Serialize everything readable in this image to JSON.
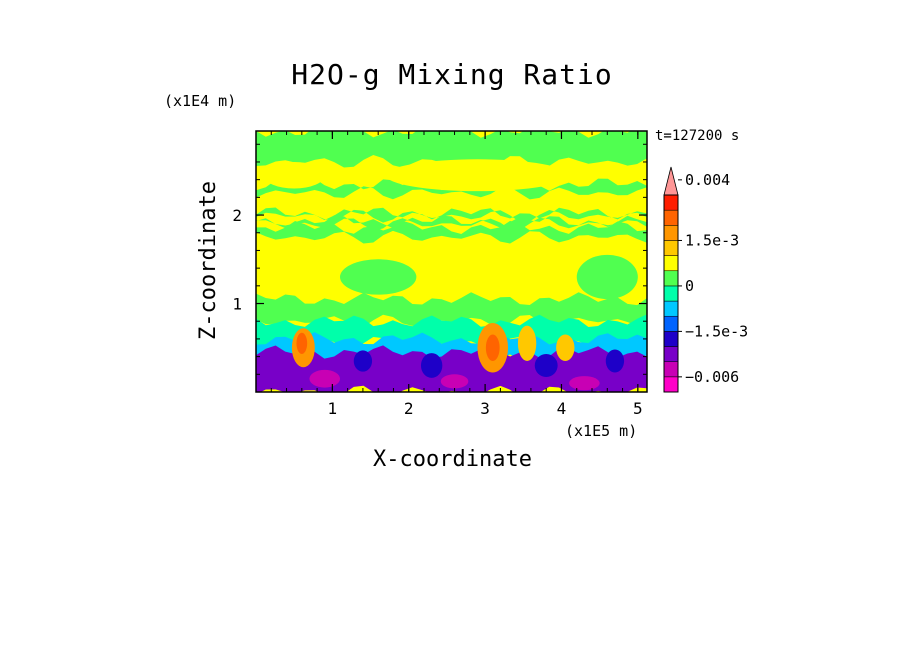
{
  "chart_data": {
    "type": "heatmap",
    "title": "H2O-g Mixing Ratio",
    "xlabel": "X-coordinate",
    "ylabel": "Z-coordinate",
    "x_unit": "(x1E5 m)",
    "z_unit": "(x1E4 m)",
    "time_label": "t=127200 s",
    "xlim": [
      0,
      5.12
    ],
    "ylim": [
      0,
      2.95
    ],
    "x_ticks": [
      1,
      2,
      3,
      4,
      5
    ],
    "y_ticks": [
      1,
      2
    ],
    "colorbar": {
      "levels": [
        -0.008,
        -0.006,
        -0.004,
        -0.0025,
        -0.0015,
        -0.001,
        -0.0005,
        0,
        0.0005,
        0.001,
        0.0015,
        0.002,
        0.0025,
        0.003,
        0.004
      ],
      "colors": [
        "#ff00c8",
        "#c800b4",
        "#7800c8",
        "#1e00c8",
        "#0064ff",
        "#00c8ff",
        "#00ffaa",
        "#50ff50",
        "#ffff00",
        "#ffc800",
        "#ff9600",
        "#ff6400",
        "#ff1e00",
        "#ff9696"
      ],
      "labels": [
        "0.004",
        "1.5e-3",
        "0",
        "−1.5e-3",
        "−0.006"
      ],
      "label_values": [
        0.004,
        0.0015,
        0,
        -0.0015,
        -0.006
      ]
    },
    "fields": {
      "background": "#ffff00",
      "bands": [
        {
          "z": [
            2.6,
            2.95
          ],
          "color": "#50ff50"
        },
        {
          "z": [
            2.25,
            2.35
          ],
          "color": "#50ff50"
        },
        {
          "z": [
            1.99,
            2.02
          ],
          "color": "#50ff50"
        },
        {
          "z": [
            1.9,
            1.93
          ],
          "color": "#50ff50"
        },
        {
          "z": [
            1.75,
            1.86
          ],
          "color": "#50ff50"
        },
        {
          "z": [
            0.8,
            1.05
          ],
          "color": "#50ff50"
        },
        {
          "z": [
            0.55,
            0.8
          ],
          "color": "#00ffaa"
        },
        {
          "z": [
            0.35,
            0.6
          ],
          "color": "#00c8ff"
        },
        {
          "z": [
            0.0,
            0.45
          ],
          "color": "#7800c8"
        }
      ],
      "blobs": [
        {
          "x": 0.62,
          "z": 0.5,
          "rx": 0.15,
          "rz": 0.22,
          "color": "#ff9600"
        },
        {
          "x": 0.6,
          "z": 0.55,
          "rx": 0.07,
          "rz": 0.12,
          "color": "#ff6400"
        },
        {
          "x": 3.1,
          "z": 0.5,
          "rx": 0.2,
          "rz": 0.28,
          "color": "#ff9600"
        },
        {
          "x": 3.1,
          "z": 0.5,
          "rx": 0.09,
          "rz": 0.15,
          "color": "#ff6400"
        },
        {
          "x": 3.55,
          "z": 0.55,
          "rx": 0.12,
          "rz": 0.2,
          "color": "#ffc800"
        },
        {
          "x": 4.05,
          "z": 0.5,
          "rx": 0.12,
          "rz": 0.15,
          "color": "#ffc800"
        },
        {
          "x": 1.4,
          "z": 0.35,
          "rx": 0.12,
          "rz": 0.12,
          "color": "#1e00c8"
        },
        {
          "x": 2.3,
          "z": 0.3,
          "rx": 0.14,
          "rz": 0.14,
          "color": "#1e00c8"
        },
        {
          "x": 3.8,
          "z": 0.3,
          "rx": 0.15,
          "rz": 0.13,
          "color": "#1e00c8"
        },
        {
          "x": 4.7,
          "z": 0.35,
          "rx": 0.12,
          "rz": 0.13,
          "color": "#1e00c8"
        },
        {
          "x": 0.9,
          "z": 0.15,
          "rx": 0.2,
          "rz": 0.1,
          "color": "#c800b4"
        },
        {
          "x": 2.6,
          "z": 0.12,
          "rx": 0.18,
          "rz": 0.08,
          "color": "#c800b4"
        },
        {
          "x": 4.3,
          "z": 0.1,
          "rx": 0.2,
          "rz": 0.08,
          "color": "#c800b4"
        },
        {
          "x": 1.6,
          "z": 1.3,
          "rx": 0.5,
          "rz": 0.2,
          "color": "#50ff50"
        },
        {
          "x": 4.6,
          "z": 1.3,
          "rx": 0.4,
          "rz": 0.25,
          "color": "#50ff50"
        },
        {
          "x": 2.9,
          "z": 2.45,
          "rx": 1.2,
          "rz": 0.18,
          "color": "#ffff00"
        },
        {
          "x": 0.5,
          "z": 2.45,
          "rx": 0.4,
          "rz": 0.15,
          "color": "#ffff00"
        }
      ]
    }
  }
}
